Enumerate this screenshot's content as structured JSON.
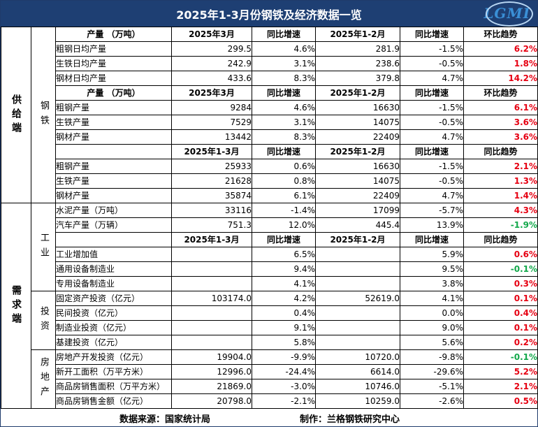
{
  "title": "2025年1-3月份钢铁及经济数据一览",
  "logo": "LGMI",
  "labels": {
    "supply": "供给端",
    "steel": "钢铁",
    "demand": "需求端",
    "industry": "工业",
    "investment": "投资",
    "real_estate": "房地产"
  },
  "headers": {
    "output_unit": "产量 （万吨）",
    "m2025_03": "2025年3月",
    "yoy": "同比增速",
    "m2025_1_2": "2025年1-2月",
    "mom_trend": "环比趋势",
    "yoy_trend": "同比趋势",
    "m2025_1_3": "2025年1-3月"
  },
  "rows": [
    [
      "粗钢日均产量",
      "299.5",
      "4.6%",
      "281.9",
      "-1.5%",
      "6.2%"
    ],
    [
      "生铁日均产量",
      "242.9",
      "3.1%",
      "238.6",
      "-0.5%",
      "1.8%"
    ],
    [
      "钢材日均产量",
      "433.6",
      "8.3%",
      "379.8",
      "4.7%",
      "14.2%"
    ],
    [
      "粗钢产量",
      "9284",
      "4.6%",
      "16630",
      "-1.5%",
      "6.1%"
    ],
    [
      "生铁产量",
      "7529",
      "3.1%",
      "14075",
      "-0.5%",
      "3.6%"
    ],
    [
      "钢材产量",
      "13442",
      "8.3%",
      "22409",
      "4.7%",
      "3.6%"
    ],
    [
      "粗钢产量",
      "25933",
      "0.6%",
      "16630",
      "-1.5%",
      "2.1%"
    ],
    [
      "生铁产量",
      "21628",
      "0.8%",
      "14075",
      "-0.5%",
      "1.3%"
    ],
    [
      "钢材产量",
      "35874",
      "6.1%",
      "22409",
      "4.7%",
      "1.4%"
    ],
    [
      "水泥产量（万吨）",
      "33116",
      "-1.4%",
      "17099",
      "-5.7%",
      "4.3%"
    ],
    [
      "汽车产量（万辆）",
      "751.3",
      "12.0%",
      "445.4",
      "13.9%",
      "-1.9%"
    ],
    [
      "工业增加值",
      "",
      "6.5%",
      "",
      "5.9%",
      "0.6%"
    ],
    [
      "通用设备制造业",
      "",
      "9.4%",
      "",
      "9.5%",
      "-0.1%"
    ],
    [
      "专用设备制造业",
      "",
      "4.1%",
      "",
      "3.8%",
      "0.3%"
    ],
    [
      "固定资产投资（亿元）",
      "103174.0",
      "4.2%",
      "52619.0",
      "4.1%",
      "0.1%"
    ],
    [
      "民间投资（亿元）",
      "",
      "0.4%",
      "",
      "0.0%",
      "0.4%"
    ],
    [
      "制造业投资（亿元）",
      "",
      "9.1%",
      "",
      "9.0%",
      "0.1%"
    ],
    [
      "基建投资（亿元）",
      "",
      "5.8%",
      "",
      "5.6%",
      "0.2%"
    ],
    [
      "房地产开发投资（亿元）",
      "19904.0",
      "-9.9%",
      "10720.0",
      "-9.8%",
      "-0.1%"
    ],
    [
      "新开工面积（万平方米）",
      "12996.0",
      "-24.4%",
      "6614.0",
      "-29.6%",
      "5.2%"
    ],
    [
      "商品房销售面积（万平方米）",
      "21869.0",
      "-3.0%",
      "10746.0",
      "-5.1%",
      "2.1%"
    ],
    [
      "商品房销售金额（亿元）",
      "20798.0",
      "-2.1%",
      "10259.0",
      "-2.6%",
      "0.5%"
    ]
  ],
  "footer": {
    "source": "数据来源：国家统计局",
    "made_by": "制作：兰格钢铁研究中心"
  },
  "colors": {
    "header_bg": "#1e3f73",
    "up": "#e60012",
    "down": "#13a84b"
  }
}
